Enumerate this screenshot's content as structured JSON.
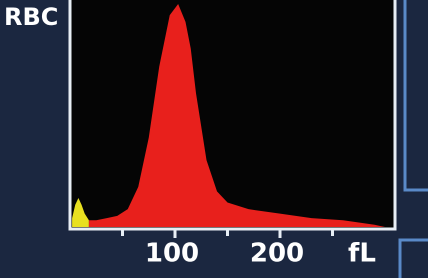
{
  "chart_data": {
    "type": "area",
    "title": "RBC",
    "x_label": "fL",
    "xlim": [
      0,
      300
    ],
    "ylim": [
      0,
      100
    ],
    "xticks": [
      100,
      200
    ],
    "minor_xticks": [
      50,
      150,
      250
    ],
    "series": [
      {
        "color": "#e8e020",
        "x": [
          2,
          5,
          8,
          11,
          14,
          18
        ],
        "values": [
          4,
          10,
          13,
          10,
          6,
          3
        ]
      },
      {
        "color": "#e8201c",
        "x": [
          18,
          25,
          35,
          45,
          55,
          65,
          75,
          85,
          95,
          103,
          110,
          115,
          120,
          125,
          130,
          140,
          150,
          170,
          200,
          230,
          260,
          290,
          300
        ],
        "values": [
          3,
          3,
          4,
          5,
          8,
          18,
          40,
          72,
          95,
          100,
          92,
          80,
          60,
          45,
          30,
          16,
          11,
          8,
          6,
          4,
          3,
          1,
          0
        ]
      }
    ]
  }
}
